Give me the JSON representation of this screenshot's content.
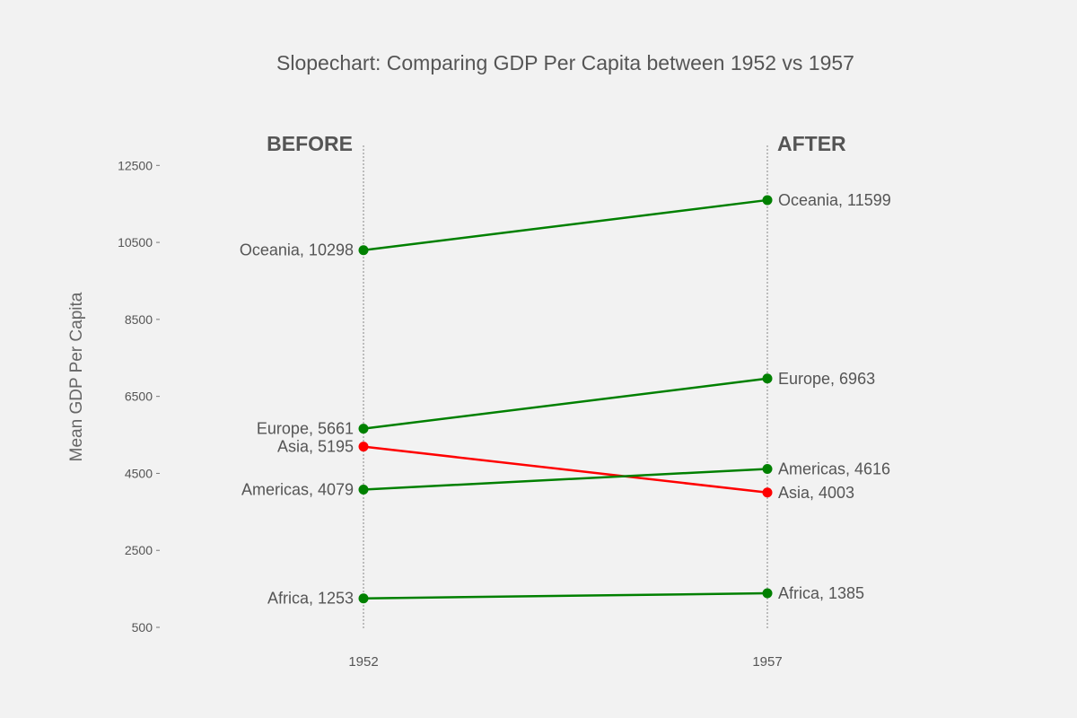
{
  "chart_data": {
    "type": "slope",
    "title": "Slopechart: Comparing GDP Per Capita between 1952 vs 1957",
    "ylabel": "Mean GDP Per Capita",
    "xlabel": "",
    "ylim": [
      500,
      13000
    ],
    "yticks": [
      12500,
      10500,
      8500,
      6500,
      4500,
      2500,
      500
    ],
    "x": [
      "1952",
      "1957"
    ],
    "header_left": "BEFORE",
    "header_right": "AFTER",
    "grid": false,
    "colors": {
      "increase": "#008000",
      "decrease": "#ff0000"
    },
    "series": [
      {
        "name": "Oceania",
        "values": [
          10298,
          11599
        ]
      },
      {
        "name": "Europe",
        "values": [
          5661,
          6963
        ]
      },
      {
        "name": "Asia",
        "values": [
          5195,
          4003
        ]
      },
      {
        "name": "Americas",
        "values": [
          4079,
          4616
        ]
      },
      {
        "name": "Africa",
        "values": [
          1253,
          1385
        ]
      }
    ]
  }
}
